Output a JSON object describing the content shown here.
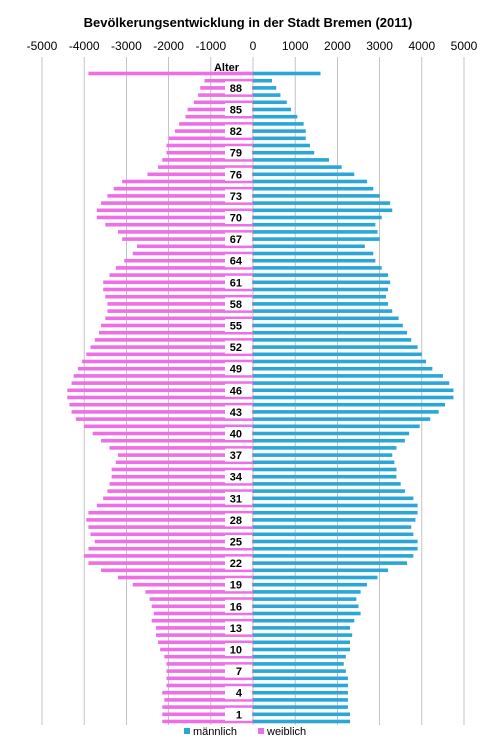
{
  "chart_data": {
    "type": "bar",
    "orientation": "horizontal",
    "title": "Bevölkerungsentwicklung in der Stadt Bremen (2011)",
    "category_axis_label": "Alter",
    "xlim": [
      -5000,
      5000
    ],
    "x_ticks": [
      -5000,
      -4000,
      -3000,
      -2000,
      -1000,
      0,
      1000,
      2000,
      3000,
      4000,
      5000
    ],
    "tick_labels": [
      "-5000",
      "-4000",
      "-3000",
      "-2000",
      "-1000",
      "0",
      "1000",
      "2000",
      "3000",
      "4000",
      "5000"
    ],
    "categories": [
      0,
      1,
      2,
      3,
      4,
      5,
      6,
      7,
      8,
      9,
      10,
      11,
      12,
      13,
      14,
      15,
      16,
      17,
      18,
      19,
      20,
      21,
      22,
      23,
      24,
      25,
      26,
      27,
      28,
      29,
      30,
      31,
      32,
      33,
      34,
      35,
      36,
      37,
      38,
      39,
      40,
      41,
      42,
      43,
      44,
      45,
      46,
      47,
      48,
      49,
      50,
      51,
      52,
      53,
      54,
      55,
      56,
      57,
      58,
      59,
      60,
      61,
      62,
      63,
      64,
      65,
      66,
      67,
      68,
      69,
      70,
      71,
      72,
      73,
      74,
      75,
      76,
      77,
      78,
      79,
      80,
      81,
      82,
      83,
      84,
      85,
      86,
      87,
      88,
      89,
      90
    ],
    "visible_category_labels": [
      1,
      4,
      7,
      10,
      13,
      16,
      19,
      22,
      25,
      28,
      31,
      34,
      37,
      40,
      43,
      46,
      49,
      52,
      55,
      58,
      61,
      64,
      67,
      70,
      73,
      76,
      79,
      82,
      85,
      88
    ],
    "grid": true,
    "legend_position": "bottom",
    "series": [
      {
        "name": "männlich",
        "color": "#2aa7d6",
        "values": [
          2300,
          2300,
          2250,
          2250,
          2250,
          2250,
          2250,
          2200,
          2150,
          2200,
          2300,
          2300,
          2350,
          2300,
          2400,
          2550,
          2500,
          2450,
          2550,
          2700,
          2950,
          3200,
          3650,
          3800,
          3900,
          3900,
          3800,
          3750,
          3850,
          3900,
          3900,
          3800,
          3600,
          3500,
          3400,
          3400,
          3350,
          3300,
          3400,
          3600,
          3700,
          3950,
          4200,
          4400,
          4550,
          4750,
          4750,
          4650,
          4500,
          4250,
          4100,
          4000,
          3900,
          3750,
          3650,
          3550,
          3450,
          3300,
          3200,
          3150,
          3200,
          3250,
          3200,
          3050,
          2900,
          2850,
          2650,
          3000,
          2950,
          2900,
          3050,
          3300,
          3250,
          3000,
          2850,
          2700,
          2400,
          2100,
          1800,
          1450,
          1350,
          1250,
          1250,
          1200,
          1050,
          900,
          800,
          650,
          550,
          450,
          1600
        ]
      },
      {
        "name": "weiblich",
        "color": "#ee6ee6",
        "values": [
          -2150,
          -2150,
          -2150,
          -2100,
          -2150,
          -2050,
          -2050,
          -2050,
          -2050,
          -2100,
          -2200,
          -2250,
          -2300,
          -2300,
          -2400,
          -2350,
          -2400,
          -2450,
          -2550,
          -2850,
          -3200,
          -3600,
          -3900,
          -4000,
          -3900,
          -3750,
          -3850,
          -3900,
          -3950,
          -3900,
          -3700,
          -3550,
          -3450,
          -3400,
          -3350,
          -3350,
          -3250,
          -3200,
          -3400,
          -3600,
          -3800,
          -4000,
          -4200,
          -4300,
          -4350,
          -4400,
          -4400,
          -4300,
          -4250,
          -4150,
          -4050,
          -3950,
          -3850,
          -3750,
          -3650,
          -3600,
          -3500,
          -3450,
          -3450,
          -3500,
          -3550,
          -3550,
          -3400,
          -3250,
          -3050,
          -2850,
          -2750,
          -3100,
          -3200,
          -3500,
          -3700,
          -3700,
          -3600,
          -3450,
          -3300,
          -3100,
          -2500,
          -2250,
          -2150,
          -2050,
          -2050,
          -2000,
          -1850,
          -1750,
          -1600,
          -1550,
          -1400,
          -1300,
          -1250,
          -1150,
          -3900
        ]
      }
    ]
  }
}
